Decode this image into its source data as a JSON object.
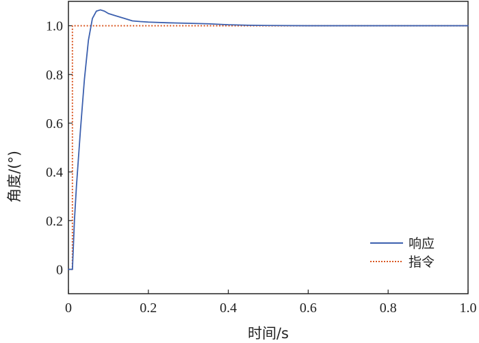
{
  "chart_data": {
    "type": "line",
    "xlabel": "时间/s",
    "ylabel": "角度/(°)",
    "xlim": [
      0,
      1.0
    ],
    "ylim": [
      -0.1,
      1.1
    ],
    "x_ticks": [
      0,
      0.2,
      0.4,
      0.6,
      0.8,
      1.0
    ],
    "x_tick_labels": [
      "0",
      "0.2",
      "0.4",
      "0.6",
      "0.8",
      "1.0"
    ],
    "y_ticks": [
      0,
      0.2,
      0.4,
      0.6,
      0.8,
      1.0
    ],
    "y_tick_labels": [
      "0",
      "0.2",
      "0.4",
      "0.6",
      "0.8",
      "1.0"
    ],
    "grid": false,
    "legend_position": "bottom-right",
    "series": [
      {
        "name": "响应",
        "color": "#3b5fae",
        "style": "solid",
        "x": [
          0,
          0.01,
          0.015,
          0.02,
          0.03,
          0.04,
          0.05,
          0.06,
          0.07,
          0.08,
          0.09,
          0.1,
          0.12,
          0.14,
          0.16,
          0.18,
          0.2,
          0.25,
          0.3,
          0.35,
          0.4,
          0.45,
          0.5,
          0.6,
          0.7,
          0.8,
          0.9,
          1.0
        ],
        "y": [
          0,
          0,
          0.2,
          0.34,
          0.57,
          0.78,
          0.94,
          1.03,
          1.06,
          1.065,
          1.06,
          1.05,
          1.04,
          1.03,
          1.02,
          1.017,
          1.015,
          1.012,
          1.01,
          1.008,
          1.004,
          1.002,
          1.001,
          1.0,
          1.0,
          1.0,
          1.0,
          1.0
        ]
      },
      {
        "name": "指令",
        "color": "#d9541e",
        "style": "dotted",
        "x": [
          0,
          0.01,
          0.01,
          1.0
        ],
        "y": [
          0,
          0,
          1.0,
          1.0
        ]
      }
    ]
  }
}
